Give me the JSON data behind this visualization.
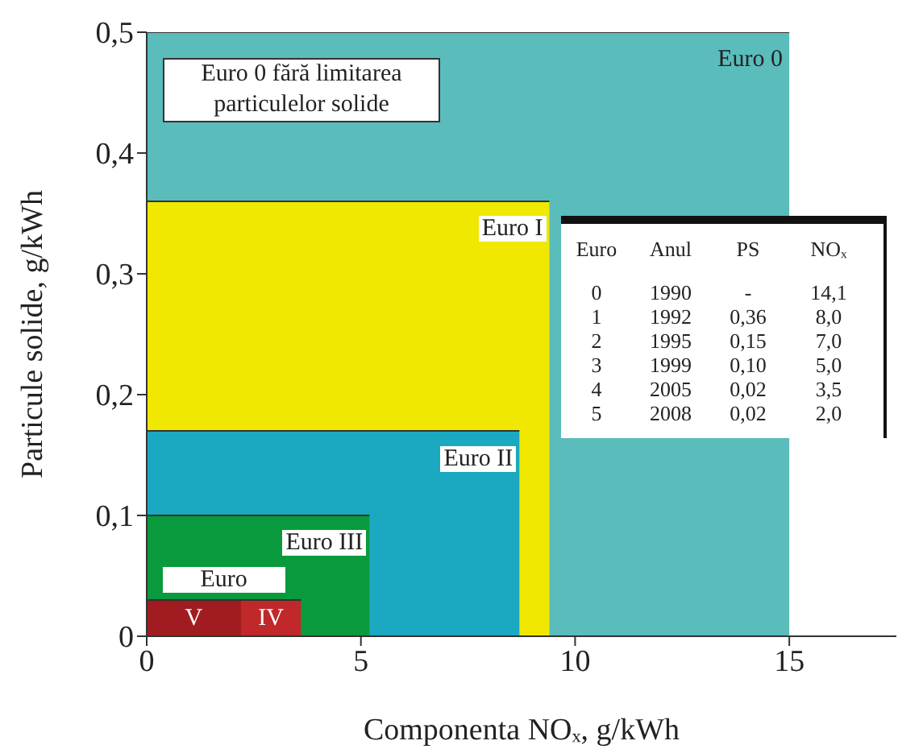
{
  "chart_data": {
    "type": "area",
    "xlabel": "Componenta NOₓ, g/kWh",
    "ylabel": "Particule solide, g/kWh",
    "xlim": [
      0,
      17.5
    ],
    "xticks": [
      0,
      5,
      10,
      15
    ],
    "ylim": [
      0,
      0.5
    ],
    "yticks": [
      0,
      {
        "value": 0.1,
        "label": "0,1"
      },
      {
        "value": 0.2,
        "label": "0,2"
      },
      {
        "value": 0.3,
        "label": "0,3"
      },
      {
        "value": 0.4,
        "label": "0,4"
      },
      {
        "value": 0.5,
        "label": "0,5"
      }
    ],
    "grid": false,
    "legend": false,
    "series": [
      {
        "name": "Euro 0",
        "color": "#5bbcbc",
        "x": [
          0,
          15
        ],
        "values": [
          0.5,
          0.5
        ]
      },
      {
        "name": "Euro I",
        "color": "#f0e800",
        "x": [
          0,
          9.4
        ],
        "values": [
          0.36,
          0.36
        ]
      },
      {
        "name": "Euro II",
        "color": "#1aa9c0",
        "x": [
          0,
          8.7
        ],
        "values": [
          0.17,
          0.17
        ]
      },
      {
        "name": "Euro III",
        "color": "#0a9a3e",
        "x": [
          0,
          5.2
        ],
        "values": [
          0.1,
          0.1
        ]
      },
      {
        "name": "IV",
        "color": "#c0282a",
        "x": [
          0,
          3.6
        ],
        "values": [
          0.03,
          0.03
        ]
      },
      {
        "name": "V",
        "color": "#a01c20",
        "x": [
          0,
          2.2
        ],
        "values": [
          0.03,
          0.03
        ]
      }
    ],
    "annotations": [
      "Euro 0 fără limitarea particulelor solide",
      "Euro",
      "Euro",
      "Anul",
      "PS",
      "NOₓ",
      "0",
      "1990",
      "-",
      "14,1",
      "1",
      "1992",
      "0,36",
      "8,0",
      "2",
      "1995",
      "0,15",
      "7,0",
      "3",
      "1999",
      "0,10",
      "5,0",
      "4",
      "2005",
      "0,02",
      "3,5",
      "5",
      "2008",
      "0,02",
      "2,0"
    ]
  }
}
